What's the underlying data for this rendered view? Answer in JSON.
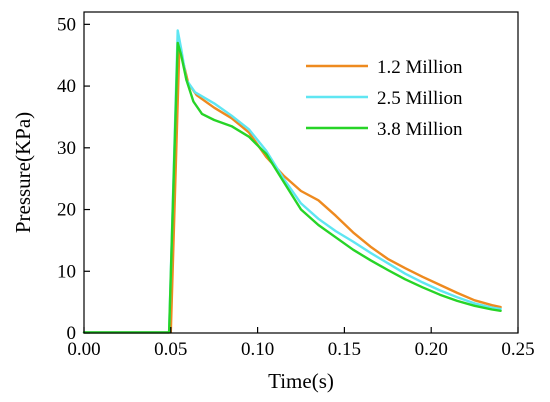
{
  "chart_data": {
    "type": "line",
    "title": "",
    "xlabel": "Time(s)",
    "ylabel": "Pressure(KPa)",
    "xlim": [
      0.0,
      0.25
    ],
    "ylim": [
      0,
      52
    ],
    "xticks": [
      0.0,
      0.05,
      0.1,
      0.15,
      0.2,
      0.25
    ],
    "xtick_labels": [
      "0.00",
      "0.05",
      "0.10",
      "0.15",
      "0.20",
      "0.25"
    ],
    "yticks": [
      0,
      10,
      20,
      30,
      40,
      50
    ],
    "ytick_labels": [
      "0",
      "10",
      "20",
      "30",
      "40",
      "50"
    ],
    "grid": false,
    "legend_position": "top-right",
    "series": [
      {
        "name": "1.2 Million",
        "color": "#ee8a1f",
        "points": [
          [
            0.0,
            0.1
          ],
          [
            0.05,
            0.1
          ],
          [
            0.055,
            47
          ],
          [
            0.057,
            44
          ],
          [
            0.06,
            40.5
          ],
          [
            0.065,
            38.5
          ],
          [
            0.075,
            36.5
          ],
          [
            0.085,
            34.8
          ],
          [
            0.095,
            32.5
          ],
          [
            0.105,
            28.5
          ],
          [
            0.115,
            25.5
          ],
          [
            0.125,
            23
          ],
          [
            0.135,
            21.5
          ],
          [
            0.145,
            19
          ],
          [
            0.155,
            16.3
          ],
          [
            0.165,
            14
          ],
          [
            0.175,
            12
          ],
          [
            0.185,
            10.5
          ],
          [
            0.195,
            9.1
          ],
          [
            0.205,
            7.8
          ],
          [
            0.215,
            6.5
          ],
          [
            0.225,
            5.3
          ],
          [
            0.235,
            4.5
          ],
          [
            0.24,
            4.2
          ]
        ]
      },
      {
        "name": "2.5 Million",
        "color": "#5fe6f2",
        "points": [
          [
            0.0,
            0.1
          ],
          [
            0.049,
            0.1
          ],
          [
            0.054,
            49
          ],
          [
            0.056,
            46
          ],
          [
            0.059,
            41
          ],
          [
            0.064,
            39
          ],
          [
            0.075,
            37.2
          ],
          [
            0.085,
            35.2
          ],
          [
            0.095,
            33
          ],
          [
            0.105,
            29.5
          ],
          [
            0.115,
            25
          ],
          [
            0.125,
            21
          ],
          [
            0.135,
            18.5
          ],
          [
            0.145,
            16.5
          ],
          [
            0.155,
            14.8
          ],
          [
            0.165,
            13
          ],
          [
            0.175,
            11.3
          ],
          [
            0.185,
            9.6
          ],
          [
            0.195,
            8.2
          ],
          [
            0.205,
            6.9
          ],
          [
            0.215,
            5.8
          ],
          [
            0.225,
            4.8
          ],
          [
            0.235,
            4.1
          ],
          [
            0.24,
            3.9
          ]
        ]
      },
      {
        "name": "3.8 Million",
        "color": "#27d427",
        "points": [
          [
            0.0,
            0.1
          ],
          [
            0.049,
            0.1
          ],
          [
            0.054,
            47
          ],
          [
            0.056,
            45
          ],
          [
            0.059,
            41
          ],
          [
            0.063,
            37.5
          ],
          [
            0.068,
            35.5
          ],
          [
            0.075,
            34.5
          ],
          [
            0.085,
            33.5
          ],
          [
            0.095,
            31.8
          ],
          [
            0.105,
            29
          ],
          [
            0.115,
            24.5
          ],
          [
            0.125,
            20
          ],
          [
            0.135,
            17.5
          ],
          [
            0.145,
            15.5
          ],
          [
            0.155,
            13.5
          ],
          [
            0.165,
            11.8
          ],
          [
            0.175,
            10.2
          ],
          [
            0.185,
            8.7
          ],
          [
            0.195,
            7.4
          ],
          [
            0.205,
            6.2
          ],
          [
            0.215,
            5.2
          ],
          [
            0.225,
            4.4
          ],
          [
            0.235,
            3.8
          ],
          [
            0.24,
            3.6
          ]
        ]
      }
    ]
  }
}
